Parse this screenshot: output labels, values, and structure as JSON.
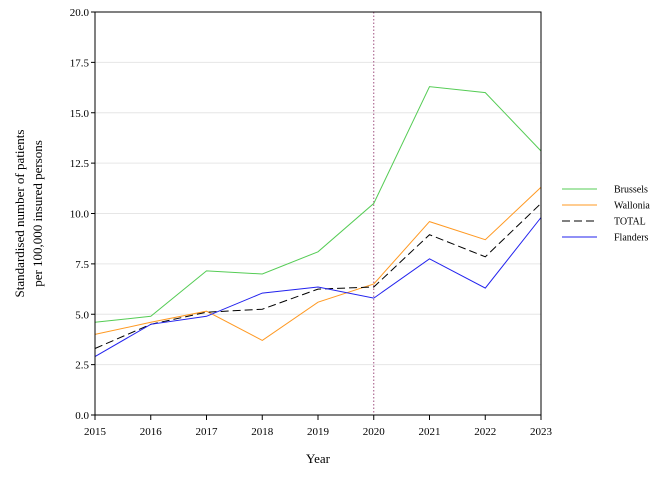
{
  "chart_data": {
    "type": "line",
    "xlabel": "Year",
    "ylabel_lines": [
      "Standardised number of patients",
      "per 100,000 insured persons"
    ],
    "x": [
      2015,
      2016,
      2017,
      2018,
      2019,
      2020,
      2021,
      2022,
      2023
    ],
    "xtick_labels": [
      "2015",
      "2016",
      "2017",
      "2018",
      "2019",
      "2020",
      "2021",
      "2022",
      "2023"
    ],
    "ylim": [
      0,
      20
    ],
    "yticks": [
      0,
      2.5,
      5,
      7.5,
      10,
      12.5,
      15,
      17.5,
      20
    ],
    "ytick_labels": [
      "0.0",
      "2.5",
      "5.0",
      "7.5",
      "10.0",
      "12.5",
      "15.0",
      "17.5",
      "20.0"
    ],
    "grid": "horizontal",
    "reference_line": {
      "x": 2020,
      "color": "#a05080",
      "style": "dotted"
    },
    "legend_position": "right",
    "series": [
      {
        "name": "Brussels",
        "color": "#55cc55",
        "dash": "solid",
        "values": [
          4.6,
          4.9,
          7.15,
          7.0,
          8.1,
          10.5,
          16.3,
          16.0,
          13.1
        ]
      },
      {
        "name": "Wallonia",
        "color": "#ff9922",
        "dash": "solid",
        "values": [
          4.0,
          4.6,
          5.15,
          3.7,
          5.6,
          6.5,
          9.6,
          8.7,
          11.3
        ]
      },
      {
        "name": "TOTAL",
        "color": "#000000",
        "dash": "dashed",
        "values": [
          3.3,
          4.5,
          5.1,
          5.25,
          6.25,
          6.35,
          8.95,
          7.85,
          10.5
        ]
      },
      {
        "name": "Flanders",
        "color": "#2222ee",
        "dash": "solid",
        "values": [
          2.9,
          4.5,
          4.9,
          6.05,
          6.35,
          5.8,
          7.75,
          6.3,
          9.8
        ]
      }
    ]
  }
}
